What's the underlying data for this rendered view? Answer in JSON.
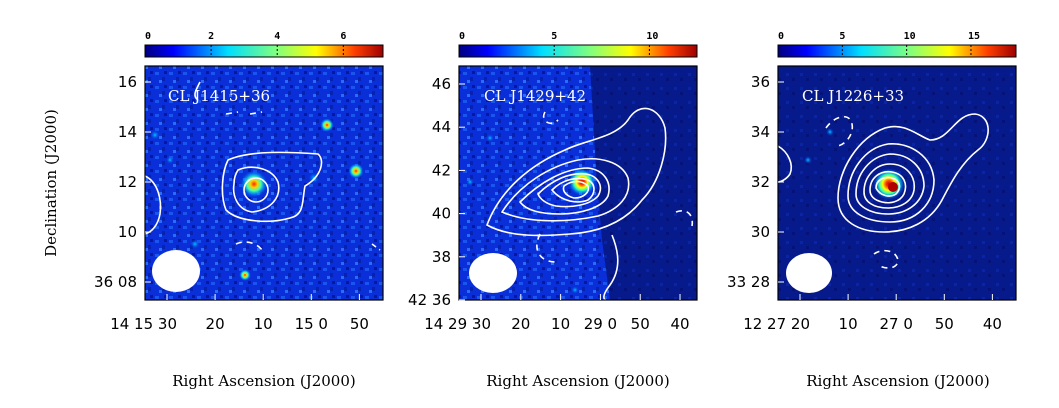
{
  "chart_data": {
    "type": "heatmap",
    "ylabel": "Declination (J2000)",
    "panels": [
      {
        "title": "CL J1415+36",
        "xlabel": "Right Ascension (J2000)",
        "colorbar": {
          "ticks": [
            0,
            2,
            4,
            6
          ],
          "range": [
            0,
            7.2
          ]
        },
        "xticks": [
          "14 15 30",
          "20",
          "10",
          "15 0",
          "50"
        ],
        "yticks": [
          "36 08",
          "10",
          "12",
          "14",
          "16"
        ],
        "peak": {
          "x": 0.43,
          "y": 0.51
        }
      },
      {
        "title": "CL J1429+42",
        "xlabel": "Right Ascension (J2000)",
        "colorbar": {
          "ticks": [
            0,
            5,
            10
          ],
          "range": [
            0,
            12.5
          ]
        },
        "xticks": [
          "14 29 30",
          "20",
          "10",
          "29 0",
          "50",
          "40"
        ],
        "yticks": [
          "42 36",
          "38",
          "40",
          "42",
          "44",
          "46"
        ],
        "peak": {
          "x": 0.49,
          "y": 0.48
        }
      },
      {
        "title": "CL J1226+33",
        "xlabel": "Right Ascension (J2000)",
        "colorbar": {
          "ticks": [
            0,
            5,
            10,
            15
          ],
          "range": [
            0,
            18.5
          ]
        },
        "xticks": [
          "12 27 20",
          "10",
          "27 0",
          "50",
          "40"
        ],
        "yticks": [
          "33 28",
          "30",
          "32",
          "34",
          "36"
        ],
        "peak": {
          "x": 0.48,
          "y": 0.5
        }
      }
    ]
  }
}
